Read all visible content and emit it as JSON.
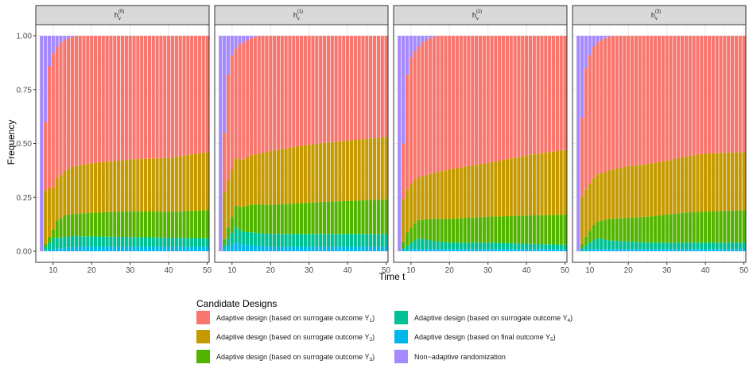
{
  "chart_data": {
    "type": "bar",
    "stacked": true,
    "facets": [
      {
        "label_base": "h",
        "label_sub": "v",
        "label_sup": "(0)"
      },
      {
        "label_base": "h",
        "label_sub": "v",
        "label_sup": "(1)"
      },
      {
        "label_base": "h",
        "label_sub": "v",
        "label_sup": "(2)"
      },
      {
        "label_base": "h",
        "label_sub": "v",
        "label_sup": "(3)"
      }
    ],
    "xlabel": "Time t",
    "ylabel": "Frequency",
    "x_ticks": [
      10,
      20,
      30,
      40,
      50
    ],
    "y_ticks": [
      "0.00",
      "0.25",
      "0.50",
      "0.75",
      "1.00"
    ],
    "xlim": [
      5.5,
      50.5
    ],
    "ylim": [
      0,
      1
    ],
    "x_range": [
      7,
      50
    ],
    "legend": {
      "title": "Candidate Designs",
      "placement": "bottom",
      "entries": [
        {
          "text": "Adaptive design (based on surrogate outcome Y",
          "sub": "1",
          "tail": ")",
          "color": "#F8766D"
        },
        {
          "text": "Adaptive design (based on surrogate outcome Y",
          "sub": "2",
          "tail": ")",
          "color": "#C49A00"
        },
        {
          "text": "Adaptive design (based on surrogate outcome Y",
          "sub": "3",
          "tail": ")",
          "color": "#53B400"
        },
        {
          "text": "Adaptive design (based on surrogate outcome Y",
          "sub": "4",
          "tail": ")",
          "color": "#00C094"
        },
        {
          "text": "Adaptive design (based on final outcome Y",
          "sub": "5",
          "tail": ")",
          "color": "#00B6EB"
        },
        {
          "text": "Non−adaptive randomization",
          "sub": "",
          "tail": "",
          "color": "#A58AFF"
        }
      ]
    },
    "series_order_bottom_to_top": [
      "Y5",
      "Y4",
      "Y3",
      "Y2",
      "Y1",
      "Non-adaptive"
    ],
    "panels": [
      {
        "non_adaptive_knots": [
          [
            7,
            1.0
          ],
          [
            8,
            0.4
          ],
          [
            9,
            0.14
          ],
          [
            10,
            0.08
          ],
          [
            11,
            0.05
          ],
          [
            12,
            0.03
          ],
          [
            13,
            0.02
          ],
          [
            14,
            0.01
          ],
          [
            15,
            0.005
          ],
          [
            16,
            0.0
          ],
          [
            50,
            0.0
          ]
        ],
        "Y5_knots": [
          [
            7,
            0.0
          ],
          [
            10,
            0.01
          ],
          [
            15,
            0.02
          ],
          [
            50,
            0.02
          ]
        ],
        "Y4_knots": [
          [
            7,
            0.0
          ],
          [
            10,
            0.05
          ],
          [
            12,
            0.05
          ],
          [
            15,
            0.05
          ],
          [
            50,
            0.04
          ]
        ],
        "Y3_knots": [
          [
            7,
            0.0
          ],
          [
            10,
            0.04
          ],
          [
            11,
            0.08
          ],
          [
            13,
            0.1
          ],
          [
            20,
            0.11
          ],
          [
            30,
            0.12
          ],
          [
            40,
            0.12
          ],
          [
            50,
            0.13
          ]
        ],
        "Y2_knots": [
          [
            7,
            0.0
          ],
          [
            8,
            0.25
          ],
          [
            10,
            0.2
          ],
          [
            12,
            0.2
          ],
          [
            15,
            0.22
          ],
          [
            20,
            0.23
          ],
          [
            30,
            0.24
          ],
          [
            40,
            0.25
          ],
          [
            50,
            0.27
          ]
        ]
      },
      {
        "non_adaptive_knots": [
          [
            7,
            1.0
          ],
          [
            8,
            0.45
          ],
          [
            9,
            0.18
          ],
          [
            10,
            0.09
          ],
          [
            11,
            0.06
          ],
          [
            12,
            0.04
          ],
          [
            13,
            0.03
          ],
          [
            14,
            0.02
          ],
          [
            15,
            0.01
          ],
          [
            16,
            0.005
          ],
          [
            17,
            0.0
          ],
          [
            50,
            0.0
          ]
        ],
        "Y5_knots": [
          [
            7,
            0.0
          ],
          [
            9,
            0.02
          ],
          [
            11,
            0.04
          ],
          [
            13,
            0.03
          ],
          [
            20,
            0.02
          ],
          [
            50,
            0.02
          ]
        ],
        "Y4_knots": [
          [
            7,
            0.0
          ],
          [
            9,
            0.04
          ],
          [
            11,
            0.07
          ],
          [
            13,
            0.06
          ],
          [
            20,
            0.06
          ],
          [
            30,
            0.06
          ],
          [
            50,
            0.06
          ]
        ],
        "Y3_knots": [
          [
            7,
            0.0
          ],
          [
            9,
            0.05
          ],
          [
            11,
            0.1
          ],
          [
            15,
            0.13
          ],
          [
            25,
            0.14
          ],
          [
            35,
            0.15
          ],
          [
            50,
            0.16
          ]
        ],
        "Y2_knots": [
          [
            7,
            0.0
          ],
          [
            8,
            0.22
          ],
          [
            10,
            0.22
          ],
          [
            13,
            0.22
          ],
          [
            20,
            0.25
          ],
          [
            30,
            0.27
          ],
          [
            40,
            0.28
          ],
          [
            50,
            0.29
          ]
        ]
      },
      {
        "non_adaptive_knots": [
          [
            7,
            1.0
          ],
          [
            8,
            0.5
          ],
          [
            9,
            0.18
          ],
          [
            10,
            0.1
          ],
          [
            11,
            0.07
          ],
          [
            12,
            0.05
          ],
          [
            13,
            0.03
          ],
          [
            14,
            0.02
          ],
          [
            15,
            0.01
          ],
          [
            16,
            0.005
          ],
          [
            17,
            0.0
          ],
          [
            50,
            0.0
          ]
        ],
        "Y5_knots": [
          [
            7,
            0.0
          ],
          [
            10,
            0.01
          ],
          [
            15,
            0.01
          ],
          [
            50,
            0.01
          ]
        ],
        "Y4_knots": [
          [
            7,
            0.0
          ],
          [
            10,
            0.03
          ],
          [
            12,
            0.05
          ],
          [
            15,
            0.04
          ],
          [
            20,
            0.03
          ],
          [
            30,
            0.03
          ],
          [
            50,
            0.02
          ]
        ],
        "Y3_knots": [
          [
            7,
            0.0
          ],
          [
            9,
            0.06
          ],
          [
            11,
            0.08
          ],
          [
            15,
            0.1
          ],
          [
            20,
            0.11
          ],
          [
            30,
            0.12
          ],
          [
            40,
            0.13
          ],
          [
            50,
            0.14
          ]
        ],
        "Y2_knots": [
          [
            7,
            0.0
          ],
          [
            8,
            0.2
          ],
          [
            10,
            0.2
          ],
          [
            13,
            0.2
          ],
          [
            20,
            0.23
          ],
          [
            30,
            0.25
          ],
          [
            40,
            0.28
          ],
          [
            50,
            0.3
          ]
        ]
      },
      {
        "non_adaptive_knots": [
          [
            7,
            1.0
          ],
          [
            8,
            0.38
          ],
          [
            9,
            0.15
          ],
          [
            10,
            0.09
          ],
          [
            11,
            0.05
          ],
          [
            12,
            0.03
          ],
          [
            13,
            0.02
          ],
          [
            14,
            0.01
          ],
          [
            15,
            0.005
          ],
          [
            16,
            0.0
          ],
          [
            50,
            0.0
          ]
        ],
        "Y5_knots": [
          [
            7,
            0.0
          ],
          [
            10,
            0.01
          ],
          [
            50,
            0.01
          ]
        ],
        "Y4_knots": [
          [
            7,
            0.0
          ],
          [
            10,
            0.03
          ],
          [
            12,
            0.05
          ],
          [
            15,
            0.04
          ],
          [
            25,
            0.03
          ],
          [
            50,
            0.03
          ]
        ],
        "Y3_knots": [
          [
            7,
            0.0
          ],
          [
            9,
            0.04
          ],
          [
            11,
            0.07
          ],
          [
            15,
            0.1
          ],
          [
            25,
            0.12
          ],
          [
            35,
            0.14
          ],
          [
            50,
            0.15
          ]
        ],
        "Y2_knots": [
          [
            7,
            0.0
          ],
          [
            8,
            0.22
          ],
          [
            10,
            0.22
          ],
          [
            13,
            0.22
          ],
          [
            20,
            0.24
          ],
          [
            30,
            0.25
          ],
          [
            40,
            0.27
          ],
          [
            50,
            0.27
          ]
        ]
      }
    ]
  }
}
